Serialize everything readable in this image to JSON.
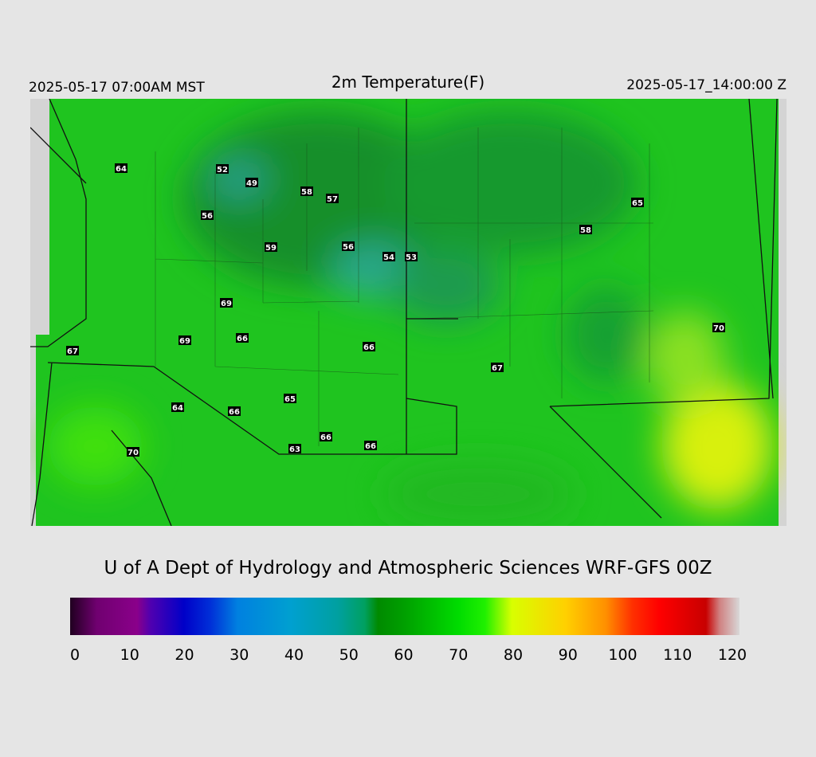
{
  "header": {
    "left": "2025-05-17 07:00AM MST",
    "title": "2m Temperature(F)",
    "right": "2025-05-17_14:00:00 Z"
  },
  "stations": [
    64,
    52,
    49,
    58,
    57,
    56,
    65,
    58,
    59,
    56,
    54,
    53,
    69,
    70,
    69,
    66,
    67,
    66,
    67,
    65,
    64,
    66,
    66,
    63,
    66,
    70
  ],
  "credit": "U of A Dept of Hydrology and Atmospheric Sciences WRF-GFS 00Z",
  "colorbar": {
    "lim": [
      0,
      120
    ],
    "ticks": [
      0,
      10,
      20,
      30,
      40,
      50,
      60,
      70,
      80,
      90,
      100,
      110,
      120
    ]
  }
}
